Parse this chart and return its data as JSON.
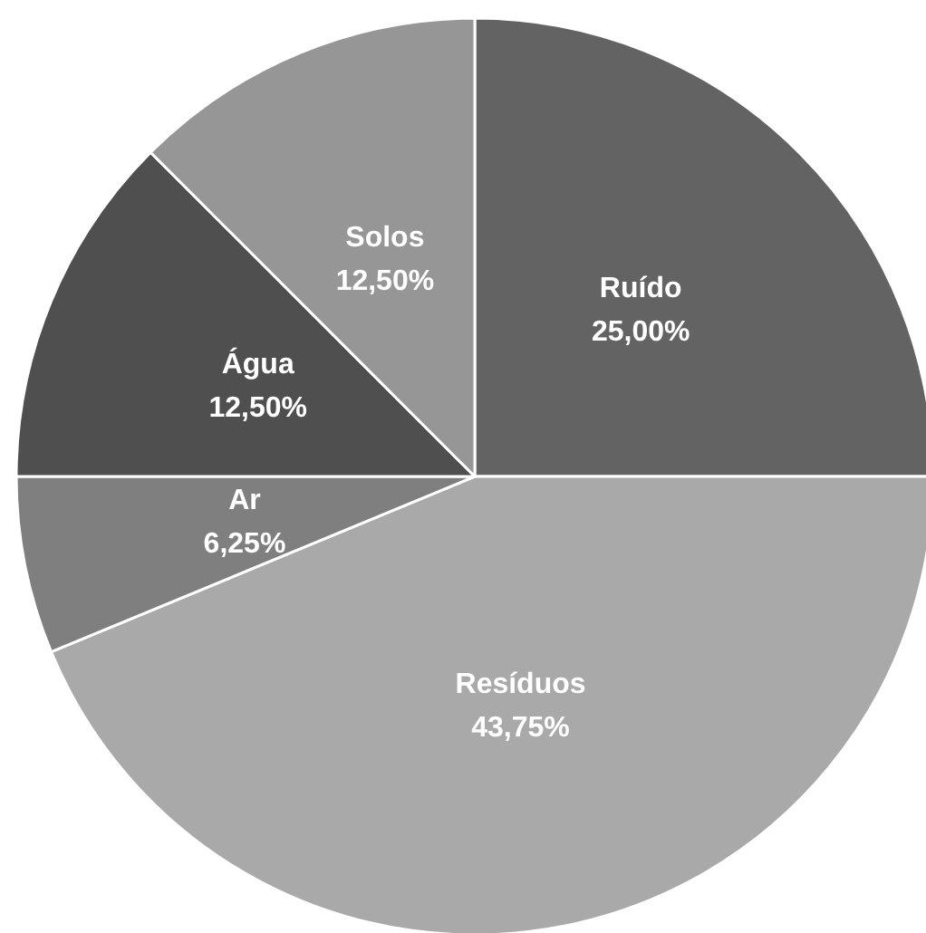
{
  "chart_data": {
    "type": "pie",
    "categories": [
      "Ruído",
      "Resíduos",
      "Ar",
      "Água",
      "Solos"
    ],
    "values": [
      25,
      43.75,
      6.25,
      12.5,
      12.5
    ],
    "colors": [
      "#636363",
      "#a9a9a9",
      "#7f7f7f",
      "#4f4f4f",
      "#969696"
    ],
    "value_labels": [
      "25,00%",
      "43,75%",
      "6,25%",
      "12,50%",
      "12,50%"
    ],
    "legend": false
  }
}
